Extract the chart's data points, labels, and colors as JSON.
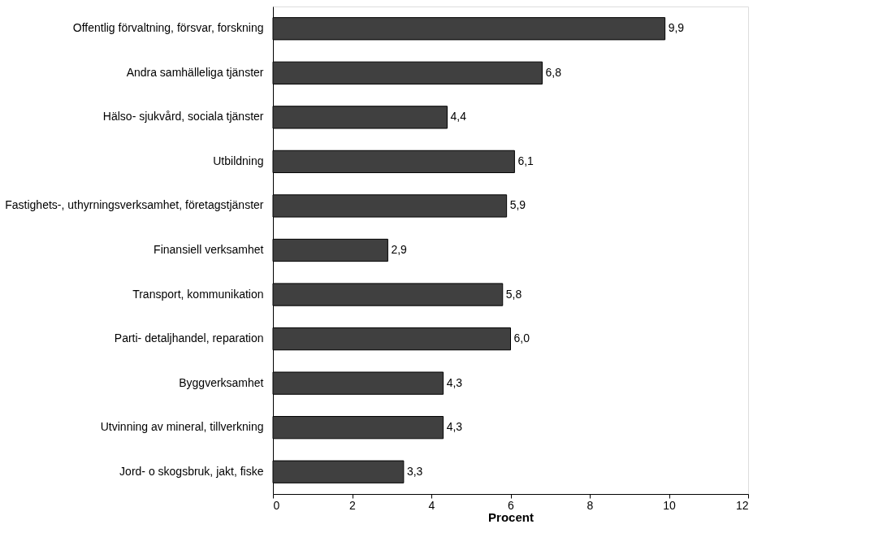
{
  "chart_data": {
    "type": "bar",
    "orientation": "horizontal",
    "xlabel": "Procent",
    "categories": [
      "Offentlig förvaltning, försvar, forskning",
      "Andra samhälleliga tjänster",
      "Hälso- sjukvård, sociala tjänster",
      "Utbildning",
      "Fastighets-, uthyrningsverksamhet, företagstjänster",
      "Finansiell verksamhet",
      "Transport, kommunikation",
      "Parti- detaljhandel, reparation",
      "Byggverksamhet",
      "Utvinning av mineral, tillverkning",
      "Jord- o skogsbruk, jakt, fiske"
    ],
    "values": [
      9.9,
      6.8,
      4.4,
      6.1,
      5.9,
      2.9,
      5.8,
      6.0,
      4.3,
      4.3,
      3.3
    ],
    "value_labels": [
      "9,9",
      "6,8",
      "4,4",
      "6,1",
      "5,9",
      "2,9",
      "5,8",
      "6,0",
      "4,3",
      "4,3",
      "3,3"
    ],
    "color": "#404040",
    "xlim": [
      0,
      12
    ],
    "xticks": [
      0,
      2,
      4,
      6,
      8,
      10,
      12
    ],
    "grid": false
  }
}
